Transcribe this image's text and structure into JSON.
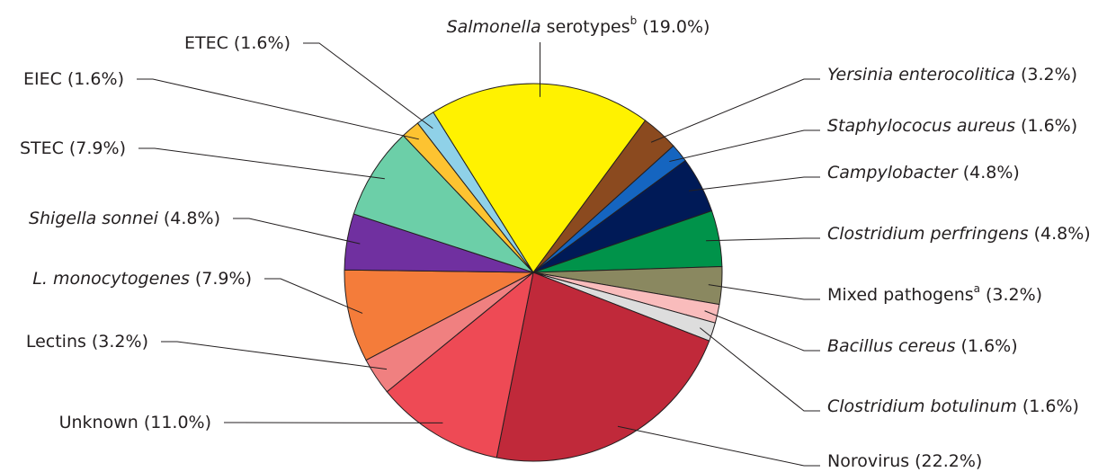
{
  "chart_data": {
    "type": "pie",
    "categories": [
      "Salmonella serotypes",
      "Yersinia enterocolitica",
      "Staphylococus aureus",
      "Campylobacter",
      "Clostridium perfringens",
      "Mixed pathogens",
      "Bacillus cereus",
      "Clostridium botulinum",
      "Norovirus",
      "Unknown",
      "Lectins",
      "L. monocytogenes",
      "Shigella sonnei",
      "STEC",
      "EIEC",
      "ETEC"
    ],
    "name_styles": [
      "italic-first-word",
      "italic",
      "italic",
      "italic",
      "italic",
      "normal",
      "italic",
      "italic",
      "normal",
      "normal",
      "normal",
      "italic",
      "italic",
      "normal",
      "normal",
      "normal"
    ],
    "footnote_marks": [
      "b",
      null,
      null,
      null,
      null,
      "a",
      null,
      null,
      null,
      null,
      null,
      null,
      null,
      null,
      null,
      null
    ],
    "values": [
      19.0,
      3.2,
      1.6,
      4.8,
      4.8,
      3.2,
      1.6,
      1.6,
      22.2,
      11.0,
      3.2,
      7.9,
      4.8,
      7.9,
      1.6,
      1.6
    ],
    "value_labels": [
      "(19.0%)",
      "(3.2%)",
      "(1.6%)",
      "(4.8%)",
      "(4.8%)",
      "(3.2%)",
      "(1.6%)",
      "(1.6%)",
      "(22.2%)",
      "(11.0%)",
      "(3.2%)",
      "(7.9%)",
      "(4.8%)",
      "(7.9%)",
      "(1.6%)",
      "(1.6%)"
    ],
    "colors": [
      "#fff200",
      "#8b4a1f",
      "#1565c0",
      "#001a57",
      "#00934a",
      "#8a8860",
      "#f9bcbc",
      "#dddddd",
      "#c0293a",
      "#ee4a55",
      "#f08080",
      "#f47c3a",
      "#7030a0",
      "#6ccfa8",
      "#fdc331",
      "#8fd1e8"
    ]
  }
}
